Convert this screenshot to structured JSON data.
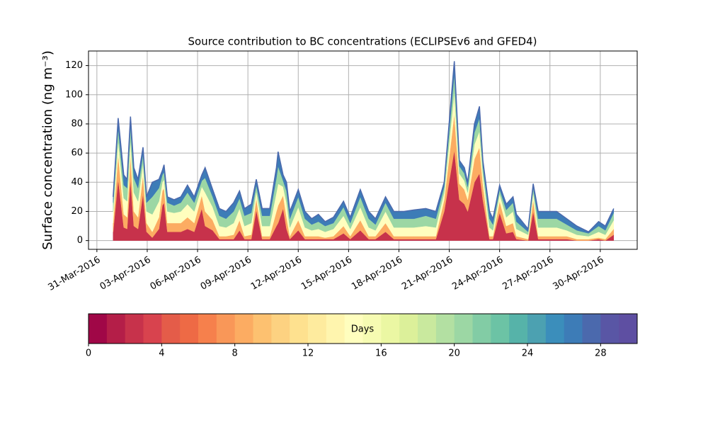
{
  "chart_data": {
    "type": "stacked_area",
    "title": "Source contribution to BC concentrations (ECLIPSEv6 and GFED4)",
    "y_label": "Surface concentration (ng m⁻³)",
    "x": [
      0.97,
      1.27,
      1.6,
      1.8,
      2.0,
      2.2,
      2.45,
      2.75,
      2.96,
      3.3,
      3.7,
      3.9,
      4.0,
      4.2,
      4.6,
      5.0,
      5.4,
      5.8,
      6.25,
      6.45,
      6.9,
      7.3,
      7.7,
      8.15,
      8.5,
      8.8,
      9.2,
      9.5,
      9.85,
      10.3,
      10.7,
      10.8,
      11.1,
      11.3,
      11.5,
      12.0,
      12.4,
      12.8,
      13.2,
      13.6,
      14.1,
      14.7,
      15.1,
      15.7,
      16.2,
      16.6,
      17.2,
      17.7,
      18.3,
      18.9,
      19.6,
      20.2,
      20.7,
      21.3,
      21.6,
      21.9,
      22.1,
      22.5,
      22.8,
      23.0,
      23.4,
      23.6,
      24.0,
      24.4,
      24.8,
      25.0,
      25.7,
      26.0,
      26.3,
      26.7,
      27.4,
      28.0,
      28.6,
      29.3,
      29.9,
      30.3,
      30.8
    ],
    "series": [
      {
        "color": "#c7324b",
        "values": [
          6,
          42,
          9,
          8,
          42,
          10,
          8,
          32,
          6,
          2,
          8,
          24,
          26,
          6,
          6,
          6,
          8,
          6,
          22,
          10,
          7,
          1,
          1,
          1,
          7,
          1,
          1,
          21,
          1,
          1,
          10,
          12,
          22,
          8,
          1,
          7,
          1,
          1,
          1,
          1,
          1,
          5,
          1,
          7,
          1,
          1,
          6,
          1,
          1,
          1,
          1,
          1,
          20,
          62,
          28,
          25,
          20,
          40,
          46,
          28,
          1,
          1,
          19,
          5,
          6,
          1,
          0,
          20,
          1,
          1,
          1,
          1,
          0,
          0,
          1,
          0,
          4
        ]
      },
      {
        "color": "#fcac62",
        "values": [
          6,
          17,
          9,
          8,
          17,
          10,
          8,
          13,
          6,
          4,
          8,
          10,
          10,
          6,
          6,
          6,
          8,
          6,
          9,
          10,
          7,
          2,
          2,
          3,
          7,
          2,
          3,
          8,
          2,
          2,
          10,
          12,
          9,
          8,
          2,
          7,
          2,
          2,
          2,
          1,
          2,
          5,
          2,
          7,
          2,
          2,
          6,
          2,
          2,
          2,
          2,
          2,
          8,
          25,
          11,
          10,
          8,
          16,
          18,
          11,
          2,
          2,
          8,
          5,
          6,
          2,
          1,
          8,
          2,
          2,
          2,
          2,
          1,
          1,
          1,
          1,
          4
        ]
      },
      {
        "color": "#fffebe",
        "values": [
          8,
          10,
          11,
          11,
          10,
          13,
          11,
          8,
          8,
          12,
          11,
          6,
          6,
          8,
          7,
          8,
          9,
          8,
          6,
          13,
          9,
          7,
          6,
          8,
          8,
          7,
          8,
          5,
          7,
          7,
          13,
          15,
          6,
          10,
          6,
          9,
          6,
          4,
          5,
          4,
          5,
          7,
          5,
          9,
          6,
          4,
          8,
          6,
          6,
          6,
          7,
          6,
          5,
          15,
          7,
          6,
          5,
          10,
          11,
          7,
          6,
          4,
          5,
          6,
          8,
          5,
          3,
          5,
          6,
          6,
          6,
          4,
          3,
          2,
          4,
          3,
          6
        ]
      },
      {
        "color": "#9cd7a4",
        "values": [
          6,
          8,
          9,
          9,
          9,
          10,
          9,
          6,
          6,
          12,
          9,
          5,
          5,
          6,
          5,
          6,
          8,
          6,
          4,
          10,
          7,
          7,
          6,
          8,
          7,
          7,
          7,
          4,
          7,
          7,
          10,
          12,
          4,
          8,
          6,
          7,
          6,
          4,
          5,
          4,
          4,
          6,
          4,
          7,
          6,
          4,
          6,
          6,
          6,
          6,
          7,
          6,
          4,
          12,
          5,
          5,
          4,
          8,
          9,
          5,
          6,
          4,
          3,
          5,
          6,
          5,
          2,
          3,
          6,
          6,
          6,
          4,
          3,
          2,
          4,
          3,
          5
        ]
      },
      {
        "color": "#3d7cb7",
        "values": [
          4,
          7,
          7,
          6,
          7,
          7,
          6,
          5,
          4,
          10,
          6,
          3,
          5,
          4,
          4,
          4,
          5,
          4,
          4,
          7,
          5,
          5,
          5,
          6,
          5,
          5,
          6,
          4,
          5,
          5,
          7,
          10,
          4,
          6,
          5,
          5,
          5,
          4,
          5,
          3,
          4,
          4,
          4,
          5,
          5,
          4,
          4,
          5,
          5,
          6,
          5,
          5,
          3,
          9,
          4,
          4,
          3,
          6,
          8,
          4,
          5,
          4,
          3,
          4,
          4,
          5,
          2,
          3,
          5,
          5,
          5,
          4,
          3,
          1,
          3,
          3,
          3
        ]
      }
    ],
    "xlim": [
      -0.5,
      32.2
    ],
    "xticks": [
      {
        "value": 0,
        "label": "31-Mar-2016"
      },
      {
        "value": 3,
        "label": "03-Apr-2016"
      },
      {
        "value": 6,
        "label": "06-Apr-2016"
      },
      {
        "value": 9,
        "label": "09-Apr-2016"
      },
      {
        "value": 12,
        "label": "12-Apr-2016"
      },
      {
        "value": 15,
        "label": "15-Apr-2016"
      },
      {
        "value": 18,
        "label": "18-Apr-2016"
      },
      {
        "value": 21,
        "label": "21-Apr-2016"
      },
      {
        "value": 24,
        "label": "24-Apr-2016"
      },
      {
        "value": 27,
        "label": "27-Apr-2016"
      },
      {
        "value": 30,
        "label": "30-Apr-2016"
      }
    ],
    "ylim": [
      -6,
      130
    ],
    "yticks": [
      0,
      20,
      40,
      60,
      80,
      100,
      120
    ],
    "grid": true,
    "colorbar": {
      "label": "Days",
      "lim": [
        0,
        30
      ],
      "ticks": [
        0,
        4,
        8,
        12,
        16,
        20,
        24,
        28
      ],
      "colors": [
        "#a00747",
        "#b41e48",
        "#c7324b",
        "#d8434e",
        "#e45c49",
        "#ee6a45",
        "#f6804c",
        "#f99758",
        "#fcac62",
        "#fdc170",
        "#fdd281",
        "#fee18f",
        "#feeb9e",
        "#fff5ae",
        "#fffebe",
        "#f6fbb2",
        "#ebf7a3",
        "#dcf09a",
        "#c9e99e",
        "#b3e0a2",
        "#9cd7a4",
        "#82cca5",
        "#6cc3a5",
        "#56b3a9",
        "#4ca1b1",
        "#3b8ebb",
        "#3d7cb7",
        "#4b69ad",
        "#5956a5",
        "#5e4fa2"
      ]
    }
  }
}
